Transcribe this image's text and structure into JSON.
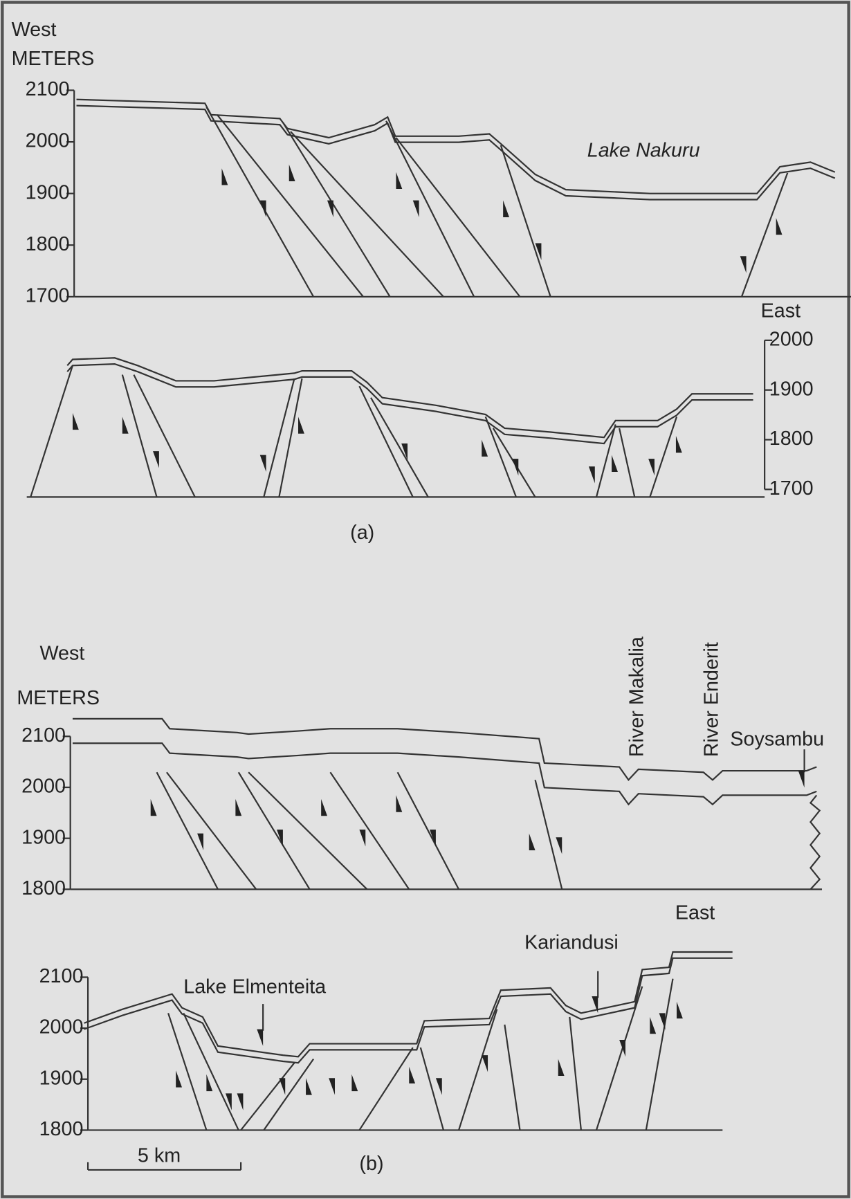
{
  "panel_a": {
    "section_1": {
      "west": "West",
      "unit": "METERS",
      "yticks": [
        2100,
        2000,
        1900,
        1800,
        1700
      ],
      "lake": "Lake Nakuru"
    },
    "section_2": {
      "east": "East",
      "yticks": [
        2000,
        1900,
        1800,
        1700
      ]
    },
    "caption": "(a)"
  },
  "panel_b": {
    "section_1": {
      "west": "West",
      "unit": "METERS",
      "yticks": [
        2100,
        2000,
        1900,
        1800
      ],
      "rivers": [
        "River Makalia",
        "River Enderit"
      ],
      "site": "Soysambu"
    },
    "section_2": {
      "east": "East",
      "site": "Kariandusi",
      "lake": "Lake Elmenteita",
      "yticks": [
        2100,
        2000,
        1900,
        1800
      ],
      "scale_bar": "5 km"
    },
    "caption": "(b)"
  }
}
